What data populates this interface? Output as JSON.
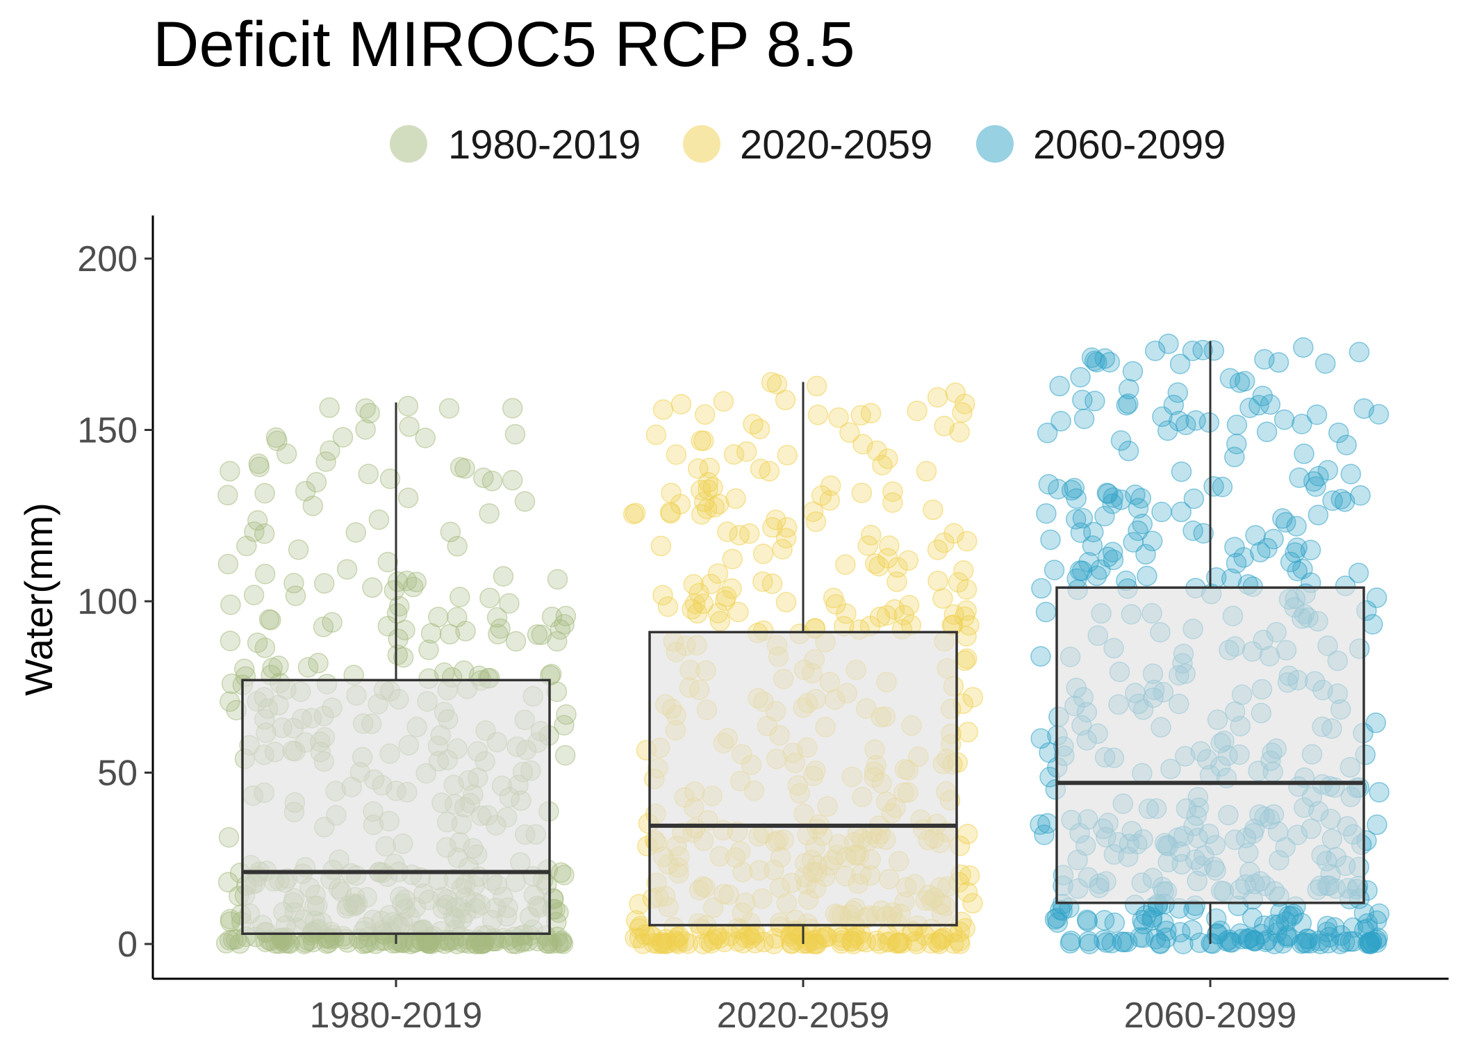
{
  "chart_data": {
    "type": "box",
    "title": "Deficit MIROC5 RCP 8.5",
    "xlabel": "",
    "ylabel": "Water(mm)",
    "ylim": [
      -10,
      210
    ],
    "yticks": [
      0,
      50,
      100,
      150,
      200
    ],
    "grid": false,
    "legend": {
      "position": "top",
      "entries": [
        "1980-2019",
        "2020-2059",
        "2060-2099"
      ]
    },
    "categories": [
      "1980-2019",
      "2020-2059",
      "2060-2099"
    ],
    "colors": [
      "#a6bb80",
      "#f0cf4f",
      "#2fa3c6"
    ],
    "box_fill": "#e0e0e0",
    "box_stroke": "#333333",
    "boxes": [
      {
        "category": "1980-2019",
        "min": 0,
        "q1": 3,
        "median": 21,
        "q3": 77,
        "max": 158
      },
      {
        "category": "2020-2059",
        "min": 0,
        "q1": 5.5,
        "median": 34.5,
        "q3": 91,
        "max": 164
      },
      {
        "category": "2060-2099",
        "min": 0,
        "q1": 12,
        "median": 47,
        "q3": 104,
        "max": 176
      }
    ],
    "points_per_category": 480
  }
}
